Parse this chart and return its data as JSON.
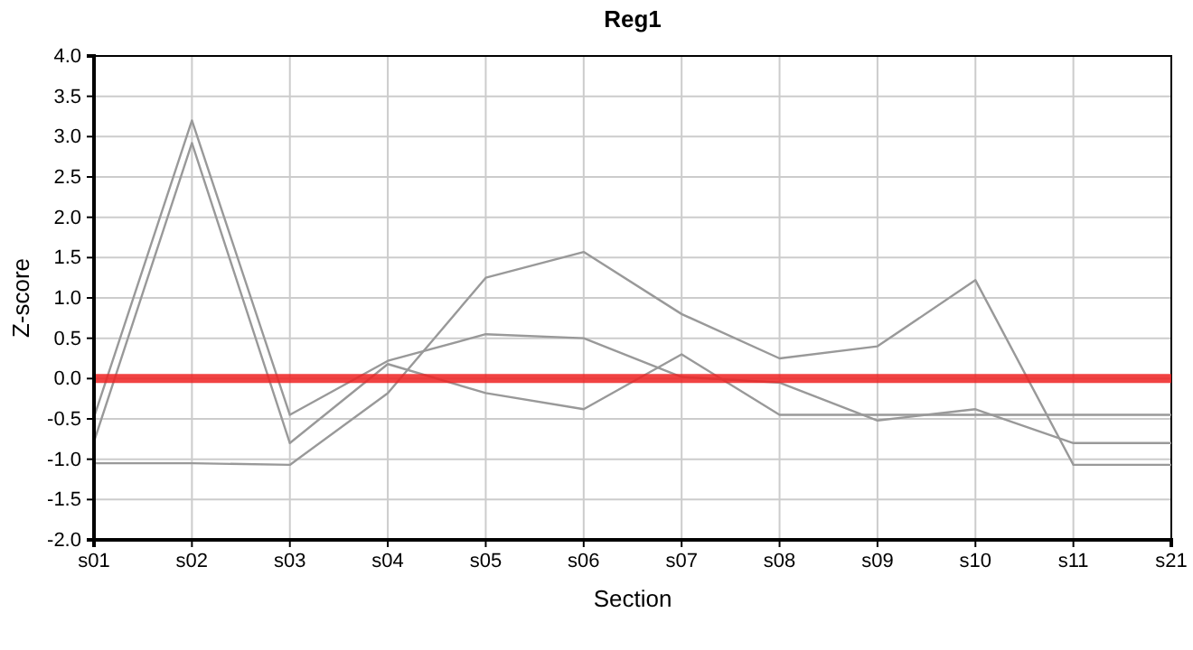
{
  "chart_data": {
    "type": "line",
    "title": "Reg1",
    "xlabel": "Section",
    "ylabel": "Z-score",
    "categories": [
      "s01",
      "s02",
      "s03",
      "s04",
      "s05",
      "s06",
      "s07",
      "s08",
      "s09",
      "s10",
      "s11",
      "s21"
    ],
    "series": [
      {
        "color": "#999999",
        "values": [
          -0.48,
          3.2,
          -0.45,
          0.22,
          0.55,
          0.5,
          0.02,
          -0.05,
          -0.52,
          -0.38,
          -0.8,
          -0.8
        ]
      },
      {
        "color": "#999999",
        "values": [
          -0.78,
          2.92,
          -0.8,
          0.18,
          -0.18,
          -0.38,
          0.3,
          -0.45,
          -0.45,
          -0.45,
          -0.45,
          -0.45
        ]
      },
      {
        "color": "#999999",
        "values": [
          -1.05,
          -1.05,
          -1.07,
          -0.18,
          1.25,
          1.57,
          0.8,
          0.25,
          0.4,
          1.22,
          -1.07,
          -1.07
        ]
      }
    ],
    "ylim": [
      -2,
      4
    ],
    "yticks": [
      {
        "value": -2,
        "label": "-2.0"
      },
      {
        "value": -1.5,
        "label": "-1.5"
      },
      {
        "value": -1,
        "label": "-1.0"
      },
      {
        "value": -0.5,
        "label": "-0.5"
      },
      {
        "value": 0,
        "label": "0.0"
      },
      {
        "value": 0.5,
        "label": "0.5"
      },
      {
        "value": 1,
        "label": "1.0"
      },
      {
        "value": 1.5,
        "label": "1.5"
      },
      {
        "value": 2,
        "label": "2.0"
      },
      {
        "value": 2.5,
        "label": "2.5"
      },
      {
        "value": 3,
        "label": "3.0"
      },
      {
        "value": 3.5,
        "label": "3.5"
      },
      {
        "value": 4,
        "label": "4.0"
      }
    ],
    "grid": true,
    "marker": "none",
    "line_style": "solid",
    "ref_lines": [
      {
        "axis": "y",
        "value": 0,
        "color": "#ee2222"
      }
    ]
  }
}
